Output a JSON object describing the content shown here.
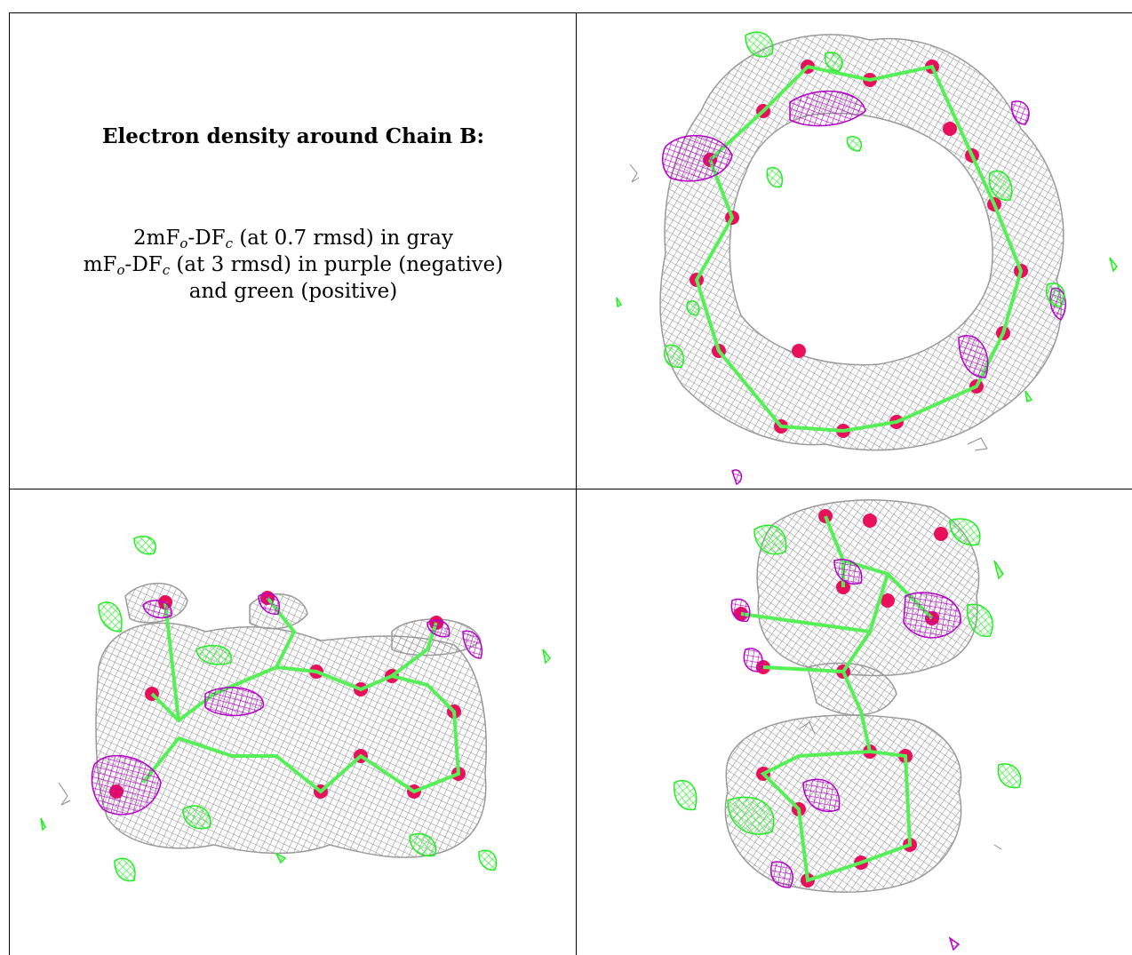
{
  "caption": {
    "title": "Electron density around Chain B:",
    "line1": {
      "prefix": "2mF",
      "sub1": "o",
      "mid": "-DF",
      "sub2": "c",
      "suffix": " (at 0.7 rmsd) in gray"
    },
    "line2": {
      "prefix": "mF",
      "sub1": "o",
      "mid": "-DF",
      "sub2": "c",
      "suffix": " (at 3 rmsd) in purple (negative)"
    },
    "line3": "and green (positive)"
  },
  "colors": {
    "gray_mesh": "#8c8c8c",
    "purple_negative": "#b400c8",
    "green_positive": "#22ee22",
    "oxygen": "#e8105a",
    "carbon_stick": "#55f055"
  }
}
